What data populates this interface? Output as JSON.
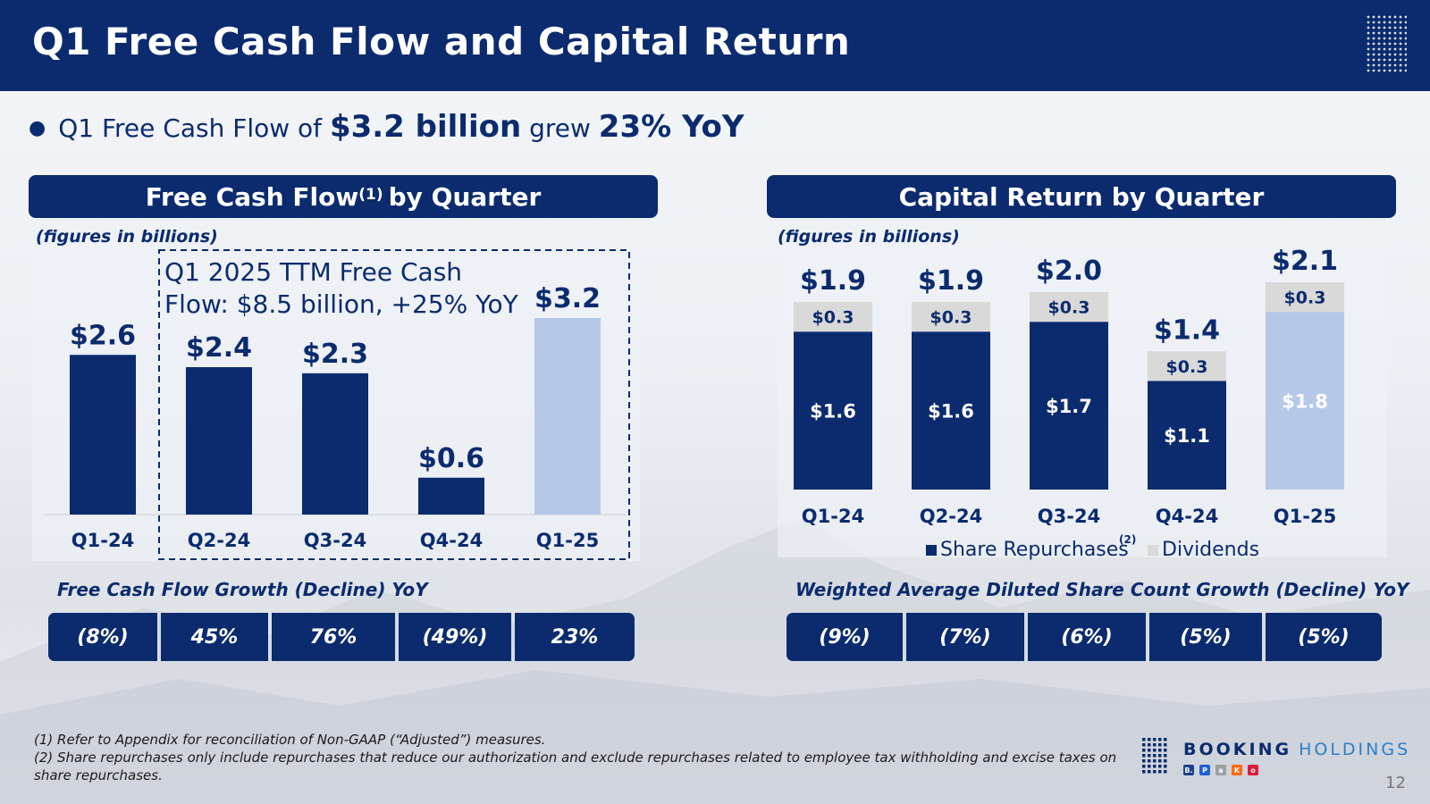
{
  "title": "Q1 Free Cash Flow and Capital Return",
  "headline": {
    "bullet": "●",
    "part1": "Q1 Free Cash Flow of",
    "value": "$3.2 billion",
    "part2": "grew",
    "growth": "23% YoY"
  },
  "left_panel": {
    "heading": "Free Cash Flow",
    "heading_sup": "(1)",
    "heading_suffix": "by Quarter",
    "units": "(figures in billions)",
    "callout_line1": "Q1 2025 TTM Free Cash",
    "callout_line2": "Flow: $8.5 billion, +25% YoY",
    "growth_label": "Free Cash Flow Growth (Decline) YoY",
    "growth_values": [
      "(8%)",
      "45%",
      "76%",
      "(49%)",
      "23%"
    ]
  },
  "right_panel": {
    "heading": "Capital Return by Quarter",
    "units": "(figures in billions)",
    "growth_label": "Weighted Average Diluted Share Count Growth (Decline) YoY",
    "growth_values": [
      "(9%)",
      "(7%)",
      "(6%)",
      "(5%)",
      "(5%)"
    ]
  },
  "chart_data": [
    {
      "type": "bar",
      "categories": [
        "Q1-24",
        "Q2-24",
        "Q3-24",
        "Q4-24",
        "Q1-25"
      ],
      "values": [
        2.6,
        2.4,
        2.3,
        0.6,
        3.2
      ],
      "value_labels": [
        "$2.6",
        "$2.4",
        "$2.3",
        "$0.6",
        "$3.2"
      ],
      "colors": [
        "#0b2b6e",
        "#0b2b6e",
        "#0b2b6e",
        "#0b2b6e",
        "#b6c8e8"
      ],
      "ylim": [
        0,
        3.2
      ],
      "grid": false
    },
    {
      "type": "bar",
      "stacked": true,
      "categories": [
        "Q1-24",
        "Q2-24",
        "Q3-24",
        "Q4-24",
        "Q1-25"
      ],
      "series": [
        {
          "name": "Share Repurchases",
          "values": [
            1.6,
            1.6,
            1.7,
            1.1,
            1.8
          ],
          "labels": [
            "$1.6",
            "$1.6",
            "$1.7",
            "$1.1",
            "$1.8"
          ],
          "color": "#0b2b6e",
          "highlight_color": "#b6c8e8"
        },
        {
          "name": "Dividends",
          "values": [
            0.3,
            0.3,
            0.3,
            0.3,
            0.3
          ],
          "labels": [
            "$0.3",
            "$0.3",
            "$0.3",
            "$0.3",
            "$0.3"
          ],
          "color": "#d9d9d9"
        }
      ],
      "totals": [
        "$1.9",
        "$1.9",
        "$2.0",
        "$1.4",
        "$2.1"
      ],
      "total_values": [
        1.9,
        1.9,
        2.0,
        1.4,
        2.1
      ],
      "legend": {
        "placement": "bottom",
        "sup": "(2)"
      },
      "ylim": [
        0,
        2.1
      ]
    }
  ],
  "footnotes": [
    "(1) Refer to Appendix for reconciliation of Non-GAAP (“Adjusted”) measures.",
    "(2) Share repurchases only include repurchases that reduce our authorization and exclude repurchases related to employee tax withholding and excise taxes on share repurchases."
  ],
  "logo": {
    "word1": "BOOKING",
    "word2": "HOLDINGS",
    "brands": [
      {
        "letter": "B.",
        "color": "#1a3f8f"
      },
      {
        "letter": "P",
        "color": "#1f5fd1"
      },
      {
        "letter": "a",
        "color": "#9aa0a6"
      },
      {
        "letter": "K",
        "color": "#ff690f"
      },
      {
        "letter": "o",
        "color": "#e01a3c"
      }
    ]
  },
  "page_number": "12"
}
